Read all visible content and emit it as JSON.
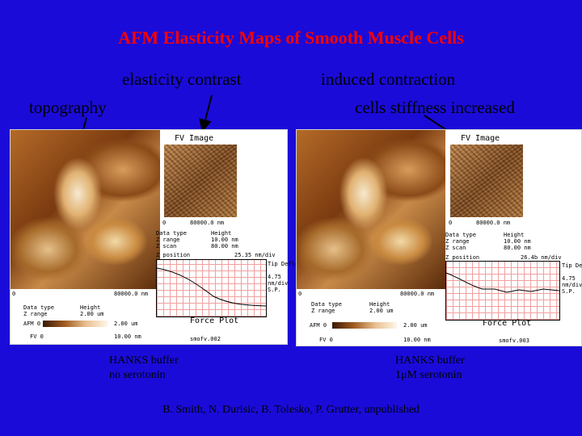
{
  "title": "AFM Elasticity Maps of Smooth Muscle Cells",
  "labels": {
    "elasticity_contrast": "elasticity contrast",
    "topography": "topography",
    "induced_contraction": "induced contraction",
    "stiffness": "cells stiffness increased"
  },
  "panels": [
    {
      "fv_title": "FV Image",
      "fv_scale_left": "0",
      "fv_scale_right": "80000.0 nm",
      "data_type_header": "Data type",
      "data_type_value": "Height",
      "z_range_label": "Z range",
      "z_range_value": "10.00 nm",
      "z_scan_label": "Z scan",
      "z_scan_value": "80.00 nm",
      "z_position_label": "Z position",
      "z_position_value": "25.35 nm/div",
      "tip_defl": "Tip Deflc",
      "tip_val": "4.75",
      "tip_unit": "nm/div",
      "sp": "S.P.",
      "topo_scale": "80000.0 nm",
      "topo_zero": "0",
      "bottom_type_label": "Data type",
      "bottom_type_value": "Height",
      "bottom_range_label": "Z range",
      "bottom_range_value": "2.00 um",
      "force_plot": "Force Plot",
      "afm_label": "AFM 0",
      "afm_value": "2.00 um",
      "fv_label": "FV 0",
      "fv_value": "10.00 nm",
      "file": "smofv.002",
      "caption_line1": "HANKS buffer",
      "caption_line2": "no serotonin"
    },
    {
      "fv_title": "FV Image",
      "fv_scale_left": "0",
      "fv_scale_right": "80000.0 nm",
      "data_type_header": "Data type",
      "data_type_value": "Height",
      "z_range_label": "Z range",
      "z_range_value": "10.00 nm",
      "z_scan_label": "Z scan",
      "z_scan_value": "80.00 nm",
      "z_position_label": "Z position",
      "z_position_value": "26.4b nm/div",
      "tip_defl": "Tip Deflc",
      "tip_val": "4.75",
      "tip_unit": "nm/div",
      "sp": "S.P.",
      "topo_scale": "80000.0 nm",
      "topo_zero": "0",
      "bottom_type_label": "Data type",
      "bottom_type_value": "Height",
      "bottom_range_label": "Z range",
      "bottom_range_value": "2.00 um",
      "force_plot": "Force Plot",
      "afm_label": "AFM 0",
      "afm_value": "2.00 um",
      "fv_label": "FV 0",
      "fv_value": "10.00 nm",
      "file": "smofv.003",
      "caption_line1": "HANKS buffer",
      "caption_line2": "1μM serotonin"
    }
  ],
  "citation": "B. Smith, N. Durisic, B. Tolesko, P. Grutter, unpublished"
}
